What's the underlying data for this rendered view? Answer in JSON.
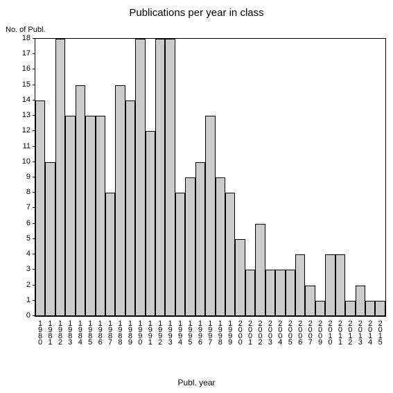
{
  "chart": {
    "type": "bar",
    "title": "Publications per year in class",
    "title_fontsize": 15,
    "y_axis_label": "No. of Publ.",
    "x_axis_label": "Publ. year",
    "label_fontsize": 11,
    "background_color": "#ffffff",
    "border_color": "#000000",
    "bar_color": "#cccccc",
    "bar_border_color": "#000000",
    "text_color": "#000000",
    "ylim": [
      0,
      18
    ],
    "ytick_step": 1,
    "yticks": [
      0,
      1,
      2,
      3,
      4,
      5,
      6,
      7,
      8,
      9,
      10,
      11,
      12,
      13,
      14,
      15,
      16,
      17,
      18
    ],
    "categories": [
      "1980",
      "1981",
      "1982",
      "1983",
      "1984",
      "1985",
      "1986",
      "1987",
      "1988",
      "1989",
      "1990",
      "1991",
      "1992",
      "1993",
      "1994",
      "1995",
      "1996",
      "1997",
      "1998",
      "1999",
      "2000",
      "2001",
      "2002",
      "2003",
      "2004",
      "2005",
      "2006",
      "2007",
      "2009",
      "2010",
      "2011",
      "2012",
      "2013",
      "2014",
      "2015"
    ],
    "values": [
      14,
      10,
      18,
      13,
      15,
      13,
      13,
      8,
      15,
      14,
      18,
      12,
      18,
      18,
      8,
      9,
      10,
      13,
      9,
      8,
      5,
      3,
      6,
      3,
      3,
      3,
      4,
      2,
      1,
      4,
      4,
      1,
      2,
      1,
      1
    ]
  }
}
